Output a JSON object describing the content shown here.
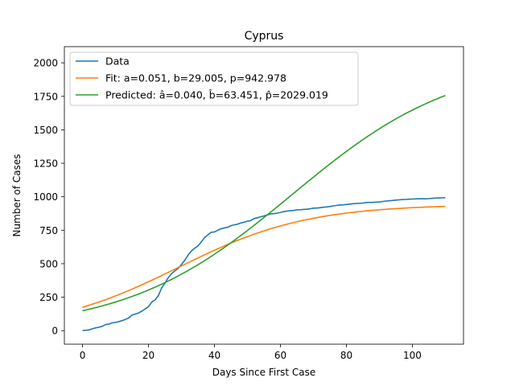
{
  "chart_data": {
    "type": "line",
    "title": "Cyprus",
    "xlabel": "Days Since First Case",
    "ylabel": "Number of Cases",
    "xlim": [
      -5.5,
      115.5
    ],
    "ylim": [
      -101,
      2121
    ],
    "xticks": [
      0,
      20,
      40,
      60,
      80,
      100
    ],
    "yticks": [
      0,
      250,
      500,
      750,
      1000,
      1250,
      1500,
      1750,
      2000
    ],
    "legend_position": "top-left",
    "grid": false,
    "series": [
      {
        "name": "Data",
        "color": "#1f77b4",
        "x": [
          0,
          1,
          2,
          3,
          4,
          5,
          6,
          7,
          8,
          9,
          10,
          11,
          12,
          13,
          14,
          15,
          16,
          17,
          18,
          19,
          20,
          21,
          22,
          23,
          24,
          25,
          26,
          27,
          28,
          29,
          30,
          31,
          32,
          33,
          34,
          35,
          36,
          37,
          38,
          39,
          40,
          41,
          42,
          43,
          44,
          45,
          46,
          47,
          48,
          49,
          50,
          51,
          52,
          53,
          54,
          55,
          56,
          57,
          58,
          59,
          60,
          61,
          62,
          63,
          64,
          65,
          66,
          67,
          68,
          69,
          70,
          71,
          72,
          73,
          74,
          75,
          76,
          77,
          78,
          79,
          80,
          81,
          82,
          83,
          84,
          85,
          86,
          87,
          88,
          89,
          90,
          91,
          92,
          93,
          94,
          95,
          96,
          97,
          98,
          99,
          100,
          101,
          102,
          103,
          104,
          105,
          106,
          107,
          108,
          109,
          110
        ],
        "y": [
          2,
          3,
          6,
          14,
          21,
          26,
          33,
          46,
          49,
          58,
          62,
          67,
          75,
          84,
          95,
          116,
          124,
          132,
          146,
          162,
          179,
          214,
          230,
          262,
          320,
          356,
          396,
          426,
          446,
          465,
          494,
          526,
          564,
          595,
          616,
          633,
          662,
          695,
          715,
          735,
          737,
          750,
          761,
          767,
          772,
          784,
          790,
          795,
          804,
          810,
          817,
          822,
          837,
          843,
          850,
          857,
          864,
          872,
          874,
          878,
          883,
          889,
          893,
          896,
          898,
          902,
          903,
          905,
          907,
          910,
          915,
          916,
          918,
          922,
          924,
          927,
          932,
          935,
          939,
          940,
          942,
          945,
          948,
          950,
          951,
          953,
          957,
          958,
          958,
          960,
          961,
          965,
          968,
          970,
          972,
          975,
          977,
          979,
          980,
          982,
          983,
          984,
          985,
          985,
          985,
          986,
          988,
          990,
          991,
          992,
          993
        ]
      },
      {
        "name": "Fit: a=0.051, b=29.005, p=942.978",
        "color": "#ff7f0e",
        "model": "logistic",
        "a": 0.051,
        "b": 29.005,
        "p": 942.978,
        "x_range": [
          0,
          110
        ]
      },
      {
        "name": "Predicted: â=0.040, b̂=63.451, p̂=2029.019",
        "color": "#2ca02c",
        "model": "logistic",
        "a": 0.04,
        "b": 63.451,
        "p": 2029.019,
        "x_range": [
          0,
          110
        ]
      }
    ]
  }
}
